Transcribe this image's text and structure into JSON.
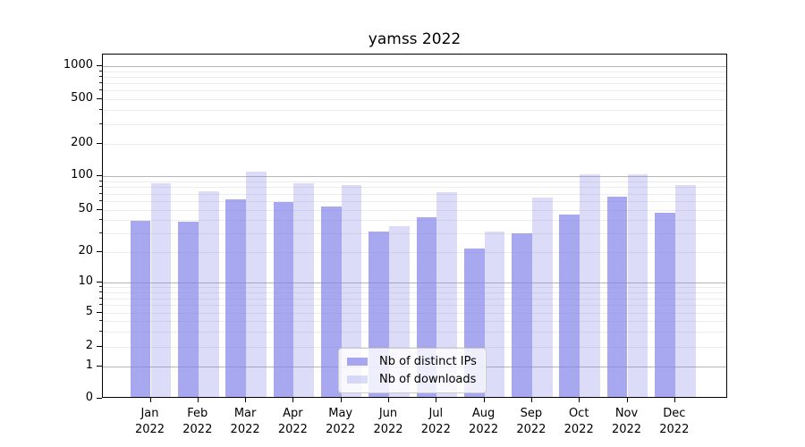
{
  "title": "yamss 2022",
  "chart_data": {
    "type": "bar",
    "title": "yamss 2022",
    "categories": [
      "Jan 2022",
      "Feb 2022",
      "Mar 2022",
      "Apr 2022",
      "May 2022",
      "Jun 2022",
      "Jul 2022",
      "Aug 2022",
      "Sep 2022",
      "Oct 2022",
      "Nov 2022",
      "Dec 2022"
    ],
    "series": [
      {
        "name": "Nb of distinct IPs",
        "values": [
          38,
          37,
          60,
          57,
          52,
          30,
          41,
          21,
          29,
          44,
          64,
          45
        ],
        "color": "rgba(131,131,234,0.7)"
      },
      {
        "name": "Nb of downloads",
        "values": [
          84,
          71,
          107,
          83,
          80,
          34,
          70,
          30,
          62,
          100,
          100,
          81
        ],
        "color": "rgba(131,131,234,0.28)"
      }
    ],
    "yscale": "symlog",
    "yticks": [
      0,
      1,
      2,
      5,
      10,
      20,
      50,
      100,
      200,
      500,
      1000
    ],
    "ytick_labels": [
      "0",
      "1",
      "2",
      "5",
      "10",
      "20",
      "50",
      "100",
      "200",
      "500",
      "1000"
    ],
    "ylim": [
      0,
      1200
    ],
    "xlabel": "",
    "ylabel": "",
    "grid": true,
    "legend_position": "lower center",
    "colors": {
      "bar_base": "#8383ea",
      "grid_major": "#b5b5b5",
      "grid_minor": "#ececec",
      "background": "#ffffff",
      "text": "#000000"
    }
  }
}
